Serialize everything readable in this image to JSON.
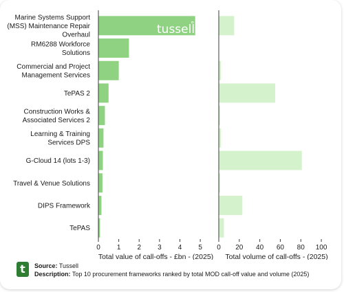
{
  "chart_data": [
    {
      "type": "bar",
      "orientation": "horizontal",
      "categories": [
        "Marine Systems Support (MSS) Maintenance Repair Overhaul",
        "RM6288 Workforce Solutions",
        "Commercial and Project Management Services",
        "TePAS 2",
        "Construction Works & Associated Services 2",
        "Learning & Training Services DPS",
        "G-Cloud 14 (lots 1-3)",
        "Travel & Venue Solutions",
        "DIPS Framework",
        "TePAS"
      ],
      "category_lines": [
        [
          "Marine Systems Support",
          "(MSS) Maintenance Repair",
          "Overhaul"
        ],
        [
          "RM6288 Workforce",
          "Solutions"
        ],
        [
          "Commercial and Project",
          "Management Services"
        ],
        [
          "TePAS 2"
        ],
        [
          "Construction Works &",
          "Associated Services 2"
        ],
        [
          "Learning & Training",
          "Services DPS"
        ],
        [
          "G-Cloud 14 (lots 1-3)"
        ],
        [
          "Travel & Venue Solutions"
        ],
        [
          "DIPS Framework"
        ],
        [
          "TePAS"
        ]
      ],
      "values": [
        4.75,
        1.5,
        1.0,
        0.5,
        0.32,
        0.25,
        0.22,
        0.2,
        0.15,
        0.08
      ],
      "xlabel": "Total value of call-offs - £bn - (2025)",
      "xticks": [
        "0",
        "1",
        "2",
        "3",
        "4",
        "5"
      ],
      "xlim": [
        0,
        5.3
      ],
      "color": "#8fd282"
    },
    {
      "type": "bar",
      "orientation": "horizontal",
      "values": [
        15,
        0,
        2,
        55,
        1,
        2,
        81,
        1,
        23,
        5
      ],
      "xlabel": "Total volume of call-offs - (2025)",
      "xticks": [
        "0",
        "20",
        "40",
        "60",
        "80",
        "100"
      ],
      "xlim": [
        0,
        106
      ],
      "color": "#d4f2cc"
    }
  ],
  "logo": {
    "text": "tussell",
    "mark": "°"
  },
  "footer": {
    "badge": "t",
    "source_label": "Source:",
    "source": "Tussell",
    "description_label": "Description:",
    "description": "Top 10 procurement frameworks ranked by total MOD call-off value and volume (2025)"
  },
  "colors": {
    "axis": "#3a3a3a",
    "text": "#1a1a1a",
    "logo": "#ffffff",
    "badge": "#2e7d32"
  }
}
